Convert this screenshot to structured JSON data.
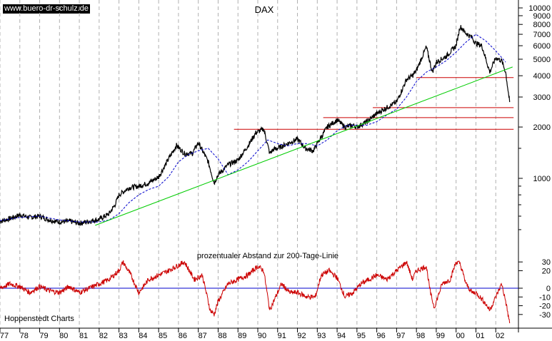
{
  "source_label": "www.buero-dr-schulz.de",
  "credit": "Hoppenstedt Charts",
  "chart_data": [
    {
      "type": "line",
      "title": "DAX",
      "y_scale": "log",
      "ylim": [
        420,
        10500
      ],
      "y_ticks": [
        1000,
        2000,
        3000,
        4000,
        5000,
        6000,
        7000,
        8000,
        9000,
        10000
      ],
      "y_tick_labels": [
        "1000",
        "2000",
        "3000",
        "4000",
        "5000",
        "6000",
        "7000",
        "8000",
        "9000",
        "10000"
      ],
      "x_ticks": [
        "77",
        "78",
        "79",
        "80",
        "81",
        "82",
        "83",
        "84",
        "85",
        "86",
        "87",
        "88",
        "89",
        "90",
        "91",
        "92",
        "93",
        "94",
        "95",
        "96",
        "97",
        "98",
        "99",
        "00",
        "01",
        "02"
      ],
      "grid": "vertical dashed",
      "series": [
        {
          "role": "index",
          "color": "#000000",
          "x": [
            1977.0,
            1977.5,
            1978.0,
            1978.5,
            1979.0,
            1979.5,
            1980.0,
            1980.5,
            1981.0,
            1981.5,
            1982.0,
            1982.5,
            1982.8,
            1983.0,
            1983.5,
            1984.0,
            1984.5,
            1985.0,
            1985.5,
            1985.9,
            1986.3,
            1986.7,
            1987.0,
            1987.5,
            1987.8,
            1988.0,
            1988.5,
            1989.0,
            1989.5,
            1989.9,
            1990.3,
            1990.6,
            1990.8,
            1991.0,
            1991.5,
            1992.0,
            1992.4,
            1992.8,
            1993.0,
            1993.5,
            1994.0,
            1994.4,
            1994.8,
            1995.0,
            1995.5,
            1996.0,
            1996.5,
            1997.0,
            1997.5,
            1997.8,
            1998.0,
            1998.5,
            1998.8,
            1999.0,
            1999.5,
            2000.0,
            2000.2,
            2000.5,
            2000.8,
            2001.0,
            2001.3,
            2001.7,
            2002.0,
            2002.3,
            2002.5,
            2002.7
          ],
          "y": [
            560,
            580,
            610,
            590,
            600,
            570,
            555,
            560,
            545,
            560,
            575,
            620,
            700,
            800,
            880,
            900,
            940,
            1020,
            1300,
            1560,
            1400,
            1400,
            1620,
            1250,
            940,
            1050,
            1200,
            1280,
            1550,
            1850,
            1950,
            1400,
            1480,
            1500,
            1600,
            1700,
            1500,
            1450,
            1600,
            2000,
            2200,
            2000,
            2050,
            2000,
            2150,
            2400,
            2600,
            2800,
            3800,
            4000,
            4300,
            5900,
            4200,
            4800,
            5200,
            6000,
            7800,
            7100,
            6700,
            6200,
            6000,
            4200,
            5100,
            4900,
            4200,
            2800
          ]
        },
        {
          "role": "200-day moving average",
          "color": "#0000cc",
          "x": [
            1977.0,
            1978.0,
            1979.0,
            1980.0,
            1981.0,
            1982.0,
            1982.5,
            1983.0,
            1983.5,
            1984.0,
            1984.5,
            1985.0,
            1985.5,
            1986.0,
            1986.5,
            1987.0,
            1987.5,
            1988.0,
            1988.5,
            1989.0,
            1989.5,
            1990.0,
            1990.5,
            1991.0,
            1991.5,
            1992.0,
            1992.5,
            1993.0,
            1993.5,
            1994.0,
            1994.5,
            1995.0,
            1995.5,
            1996.0,
            1996.5,
            1997.0,
            1997.5,
            1998.0,
            1998.5,
            1999.0,
            1999.5,
            2000.0,
            2000.5,
            2001.0,
            2001.5,
            2002.0,
            2002.5
          ],
          "y": [
            565,
            590,
            600,
            570,
            555,
            555,
            570,
            620,
            720,
            800,
            860,
            900,
            1020,
            1250,
            1380,
            1450,
            1500,
            1300,
            1050,
            1120,
            1250,
            1450,
            1680,
            1600,
            1550,
            1600,
            1600,
            1550,
            1680,
            1900,
            2050,
            2050,
            2050,
            2150,
            2350,
            2550,
            3000,
            3700,
            4200,
            4500,
            4900,
            5500,
            6300,
            7000,
            6400,
            5600,
            4800
          ]
        },
        {
          "role": "trend line",
          "color": "#00cc00",
          "x": [
            1981.8,
            2002.85
          ],
          "y": [
            530,
            4500
          ]
        }
      ],
      "support_levels": [
        {
          "y": 3900,
          "x_start": 1998.0,
          "x_end": 2002.9,
          "color": "#cc0000"
        },
        {
          "y": 2600,
          "x_start": 1995.8,
          "x_end": 2002.9,
          "color": "#cc0000"
        },
        {
          "y": 2270,
          "x_start": 1993.3,
          "x_end": 2002.9,
          "color": "#cc0000"
        },
        {
          "y": 1940,
          "x_start": 1988.8,
          "x_end": 2002.9,
          "color": "#cc0000"
        }
      ]
    },
    {
      "type": "line",
      "title": "prozentualer Abstand zur 200-Tage-Linie",
      "ylim": [
        -44,
        44
      ],
      "y_ticks": [
        30,
        20,
        0,
        -10,
        -20,
        -30
      ],
      "y_tick_labels": [
        "30",
        "20",
        "0",
        "-10",
        "-20",
        "-30"
      ],
      "baseline": 0,
      "baseline_color": "#0000cc",
      "series": [
        {
          "role": "distance to 200-day line (%)",
          "color": "#cc0000",
          "x": [
            1977.0,
            1977.5,
            1978.0,
            1978.5,
            1979.0,
            1979.5,
            1980.0,
            1980.5,
            1981.0,
            1981.5,
            1982.0,
            1982.5,
            1983.0,
            1983.2,
            1983.6,
            1984.0,
            1984.5,
            1985.0,
            1985.5,
            1985.9,
            1986.3,
            1986.8,
            1987.2,
            1987.6,
            1987.8,
            1988.0,
            1988.5,
            1989.0,
            1989.5,
            1990.0,
            1990.3,
            1990.6,
            1990.9,
            1991.2,
            1991.6,
            1992.0,
            1992.5,
            1992.9,
            1993.2,
            1993.6,
            1994.0,
            1994.4,
            1994.8,
            1995.2,
            1995.6,
            1996.0,
            1996.5,
            1997.0,
            1997.5,
            1997.8,
            1998.0,
            1998.5,
            1998.7,
            1998.9,
            1999.3,
            1999.7,
            2000.0,
            2000.2,
            2000.5,
            2000.8,
            2001.0,
            2001.4,
            2001.7,
            2002.0,
            2002.3,
            2002.5,
            2002.7
          ],
          "y": [
            0,
            5,
            2,
            -5,
            2,
            -3,
            -5,
            2,
            -5,
            0,
            5,
            10,
            20,
            30,
            15,
            -5,
            10,
            15,
            20,
            25,
            30,
            10,
            15,
            -25,
            -30,
            -15,
            5,
            10,
            15,
            25,
            20,
            -25,
            -10,
            5,
            -5,
            -5,
            -10,
            -10,
            15,
            20,
            12,
            -10,
            -5,
            5,
            10,
            15,
            10,
            20,
            30,
            10,
            20,
            25,
            -5,
            -22,
            5,
            10,
            30,
            28,
            5,
            -5,
            -5,
            -15,
            -25,
            -10,
            5,
            -15,
            -40
          ]
        }
      ]
    }
  ]
}
